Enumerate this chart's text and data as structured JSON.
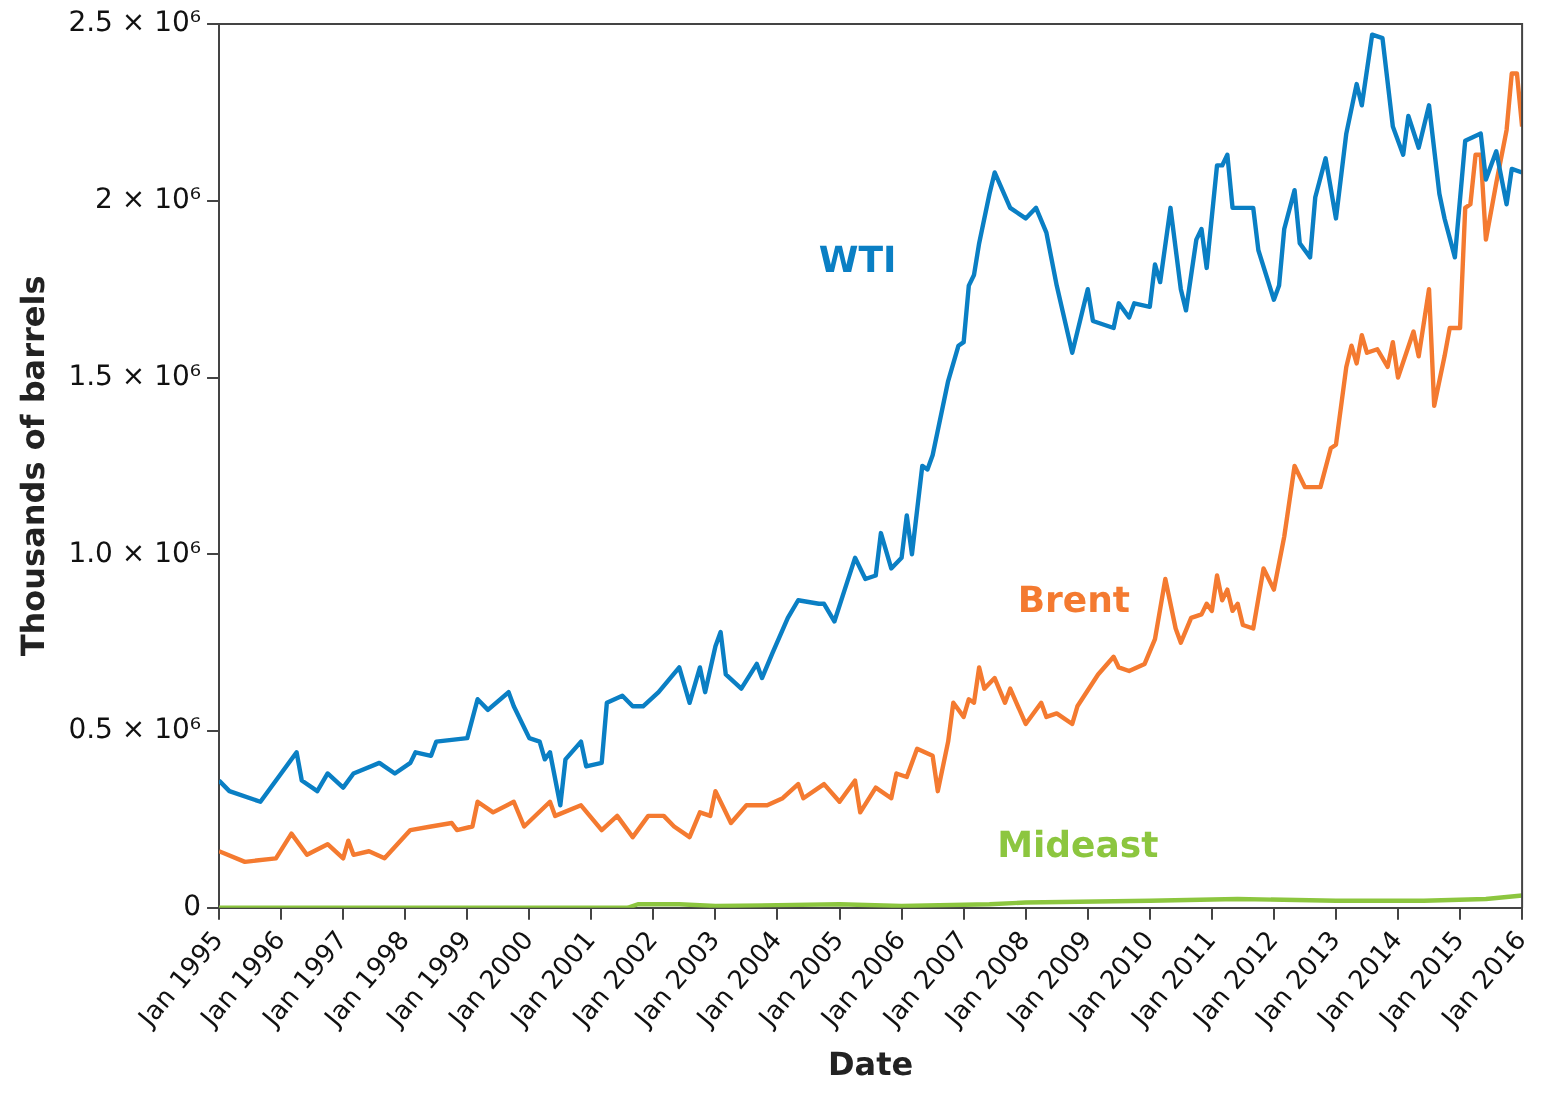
{
  "chart_data": {
    "type": "line",
    "xlabel": "Date",
    "ylabel": "Thousands of barrels",
    "xlim": [
      "1995-01",
      "2016-01"
    ],
    "ylim": [
      0,
      2500000
    ],
    "xticks": [
      {
        "value": "1995-01",
        "label": "Jan 1995"
      },
      {
        "value": "1996-01",
        "label": "Jan 1996"
      },
      {
        "value": "1997-01",
        "label": "Jan 1997"
      },
      {
        "value": "1998-01",
        "label": "Jan 1998"
      },
      {
        "value": "1999-01",
        "label": "Jan 1999"
      },
      {
        "value": "2000-01",
        "label": "Jan 2000"
      },
      {
        "value": "2001-01",
        "label": "Jan 2001"
      },
      {
        "value": "2002-01",
        "label": "Jan 2002"
      },
      {
        "value": "2003-01",
        "label": "Jan 2003"
      },
      {
        "value": "2004-01",
        "label": "Jan 2004"
      },
      {
        "value": "2005-01",
        "label": "Jan 2005"
      },
      {
        "value": "2006-01",
        "label": "Jan 2006"
      },
      {
        "value": "2007-01",
        "label": "Jan 2007"
      },
      {
        "value": "2008-01",
        "label": "Jan 2008"
      },
      {
        "value": "2009-01",
        "label": "Jan 2009"
      },
      {
        "value": "2010-01",
        "label": "Jan 2010"
      },
      {
        "value": "2011-01",
        "label": "Jan 2011"
      },
      {
        "value": "2012-01",
        "label": "Jan 2012"
      },
      {
        "value": "2013-01",
        "label": "Jan 2013"
      },
      {
        "value": "2014-01",
        "label": "Jan 2014"
      },
      {
        "value": "2015-01",
        "label": "Jan 2015"
      },
      {
        "value": "2016-01",
        "label": "Jan 2016"
      }
    ],
    "yticks": [
      0,
      {
        "value": 500000,
        "label": "0.5 × 10⁶"
      },
      {
        "value": 1000000,
        "label": "1.0 × 10⁶"
      },
      {
        "value": 1500000,
        "label": "1.5 × 10⁶"
      },
      {
        "value": 2000000,
        "label": "2 × 10⁶"
      },
      {
        "value": 2500000,
        "label": "2.5 × 10⁶"
      }
    ],
    "grid": false,
    "legend": false,
    "marker": "none",
    "line_style": "solid",
    "series": [
      {
        "name": "WTI",
        "color": "#0a7fc4",
        "x": [
          "1995-01",
          "1995-03",
          "1995-09",
          "1996-01",
          "1996-04",
          "1996-05",
          "1996-08",
          "1996-10",
          "1997-01",
          "1997-03",
          "1997-08",
          "1997-11",
          "1998-02",
          "1998-03",
          "1998-06",
          "1998-07",
          "1999-01",
          "1999-03",
          "1999-05",
          "1999-09",
          "1999-10",
          "2000-01",
          "2000-03",
          "2000-04",
          "2000-05",
          "2000-07",
          "2000-08",
          "2000-11",
          "2000-12",
          "2001-03",
          "2001-04",
          "2001-07",
          "2001-09",
          "2001-11",
          "2002-02",
          "2002-06",
          "2002-08",
          "2002-10",
          "2002-11",
          "2003-01",
          "2003-02",
          "2003-03",
          "2003-06",
          "2003-09",
          "2003-10",
          "2003-12",
          "2004-03",
          "2004-05",
          "2004-09",
          "2004-10",
          "2004-12",
          "2005-02",
          "2005-04",
          "2005-06",
          "2005-08",
          "2005-09",
          "2005-11",
          "2006-01",
          "2006-02",
          "2006-03",
          "2006-05",
          "2006-06",
          "2006-07",
          "2006-10",
          "2006-12",
          "2007-01",
          "2007-02",
          "2007-03",
          "2007-04",
          "2007-05",
          "2007-06",
          "2007-07",
          "2007-10",
          "2008-01",
          "2008-03",
          "2008-05",
          "2008-07",
          "2008-10",
          "2009-01",
          "2009-02",
          "2009-06",
          "2009-07",
          "2009-09",
          "2009-10",
          "2010-01",
          "2010-02",
          "2010-03",
          "2010-05",
          "2010-07",
          "2010-08",
          "2010-10",
          "2010-11",
          "2010-12",
          "2011-02",
          "2011-03",
          "2011-04",
          "2011-05",
          "2011-09",
          "2011-10",
          "2012-01",
          "2012-02",
          "2012-03",
          "2012-05",
          "2012-06",
          "2012-08",
          "2012-09",
          "2012-11",
          "2013-01",
          "2013-03",
          "2013-05",
          "2013-06",
          "2013-08",
          "2013-10",
          "2013-12",
          "2014-02",
          "2014-03",
          "2014-05",
          "2014-07",
          "2014-09",
          "2014-10",
          "2014-12",
          "2015-02",
          "2015-05",
          "2015-06",
          "2015-08",
          "2015-10",
          "2015-11",
          "2016-01"
        ],
        "values": [
          360000,
          330000,
          300000,
          380000,
          440000,
          360000,
          330000,
          380000,
          340000,
          380000,
          410000,
          380000,
          410000,
          440000,
          430000,
          470000,
          480000,
          590000,
          560000,
          610000,
          570000,
          480000,
          470000,
          420000,
          440000,
          290000,
          420000,
          470000,
          400000,
          410000,
          580000,
          600000,
          570000,
          570000,
          610000,
          680000,
          580000,
          680000,
          610000,
          740000,
          780000,
          660000,
          620000,
          690000,
          650000,
          720000,
          820000,
          870000,
          860000,
          860000,
          810000,
          900000,
          990000,
          930000,
          940000,
          1060000,
          960000,
          990000,
          1110000,
          1000000,
          1250000,
          1240000,
          1280000,
          1490000,
          1590000,
          1600000,
          1760000,
          1790000,
          1880000,
          1950000,
          2020000,
          2080000,
          1980000,
          1950000,
          1980000,
          1910000,
          1760000,
          1570000,
          1750000,
          1660000,
          1640000,
          1710000,
          1670000,
          1710000,
          1700000,
          1820000,
          1770000,
          1980000,
          1750000,
          1690000,
          1890000,
          1920000,
          1810000,
          2100000,
          2100000,
          2130000,
          1980000,
          1980000,
          1860000,
          1720000,
          1760000,
          1920000,
          2030000,
          1880000,
          1840000,
          2010000,
          2120000,
          1950000,
          2190000,
          2330000,
          2270000,
          2470000,
          2460000,
          2210000,
          2130000,
          2240000,
          2150000,
          2270000,
          2020000,
          1950000,
          1840000,
          2170000,
          2190000,
          2060000,
          2140000,
          1990000,
          2090000,
          2080000
        ]
      },
      {
        "name": "Brent",
        "color": "#f47a30",
        "x": [
          "1995-01",
          "1995-06",
          "1995-12",
          "1996-03",
          "1996-06",
          "1996-10",
          "1997-01",
          "1997-02",
          "1997-03",
          "1997-06",
          "1997-09",
          "1998-02",
          "1998-06",
          "1998-10",
          "1998-11",
          "1999-02",
          "1999-03",
          "1999-06",
          "1999-10",
          "1999-12",
          "2000-05",
          "2000-06",
          "2000-11",
          "2001-03",
          "2001-06",
          "2001-09",
          "2001-12",
          "2002-03",
          "2002-05",
          "2002-08",
          "2002-10",
          "2002-12",
          "2003-01",
          "2003-04",
          "2003-07",
          "2003-11",
          "2004-02",
          "2004-05",
          "2004-06",
          "2004-10",
          "2005-01",
          "2005-04",
          "2005-05",
          "2005-08",
          "2005-11",
          "2005-12",
          "2006-02",
          "2006-04",
          "2006-07",
          "2006-08",
          "2006-10",
          "2006-11",
          "2007-01",
          "2007-02",
          "2007-03",
          "2007-04",
          "2007-05",
          "2007-07",
          "2007-09",
          "2007-10",
          "2008-01",
          "2008-04",
          "2008-05",
          "2008-07",
          "2008-10",
          "2008-11",
          "2009-03",
          "2009-06",
          "2009-07",
          "2009-09",
          "2009-12",
          "2010-02",
          "2010-04",
          "2010-06",
          "2010-07",
          "2010-09",
          "2010-11",
          "2010-12",
          "2011-01",
          "2011-02",
          "2011-03",
          "2011-04",
          "2011-05",
          "2011-06",
          "2011-07",
          "2011-09",
          "2011-11",
          "2012-01",
          "2012-03",
          "2012-05",
          "2012-07",
          "2012-10",
          "2012-12",
          "2013-01",
          "2013-03",
          "2013-04",
          "2013-05",
          "2013-06",
          "2013-07",
          "2013-09",
          "2013-11",
          "2013-12",
          "2014-01",
          "2014-04",
          "2014-05",
          "2014-07",
          "2014-08",
          "2014-10",
          "2014-11",
          "2015-01",
          "2015-02",
          "2015-03",
          "2015-04",
          "2015-05",
          "2015-06",
          "2015-08",
          "2015-10",
          "2015-11",
          "2015-12",
          "2016-01"
        ],
        "values": [
          160000,
          130000,
          140000,
          210000,
          150000,
          180000,
          140000,
          190000,
          150000,
          160000,
          140000,
          220000,
          230000,
          240000,
          220000,
          230000,
          300000,
          270000,
          300000,
          230000,
          300000,
          260000,
          290000,
          220000,
          260000,
          200000,
          260000,
          260000,
          230000,
          200000,
          270000,
          260000,
          330000,
          240000,
          290000,
          290000,
          310000,
          350000,
          310000,
          350000,
          300000,
          360000,
          270000,
          340000,
          310000,
          380000,
          370000,
          450000,
          430000,
          330000,
          470000,
          580000,
          540000,
          590000,
          580000,
          680000,
          620000,
          650000,
          580000,
          620000,
          520000,
          580000,
          540000,
          550000,
          520000,
          570000,
          660000,
          710000,
          680000,
          670000,
          690000,
          760000,
          930000,
          790000,
          750000,
          820000,
          830000,
          860000,
          840000,
          940000,
          870000,
          900000,
          840000,
          860000,
          800000,
          790000,
          960000,
          900000,
          1050000,
          1250000,
          1190000,
          1190000,
          1300000,
          1310000,
          1530000,
          1590000,
          1540000,
          1620000,
          1570000,
          1580000,
          1530000,
          1600000,
          1500000,
          1630000,
          1560000,
          1750000,
          1420000,
          1560000,
          1640000,
          1640000,
          1980000,
          1990000,
          2130000,
          2130000,
          1890000,
          2050000,
          2200000,
          2360000,
          2360000,
          2210000
        ]
      },
      {
        "name": "Mideast",
        "color": "#8cc63f",
        "x": [
          "1995-01",
          "2001-08",
          "2001-10",
          "2002-06",
          "2003-01",
          "2005-01",
          "2006-01",
          "2007-06",
          "2008-01",
          "2010-01",
          "2011-06",
          "2013-01",
          "2014-06",
          "2015-06",
          "2016-01"
        ],
        "values": [
          0,
          0,
          10000,
          10000,
          5000,
          10000,
          5000,
          10000,
          15000,
          20000,
          25000,
          20000,
          20000,
          25000,
          35000
        ]
      }
    ]
  }
}
